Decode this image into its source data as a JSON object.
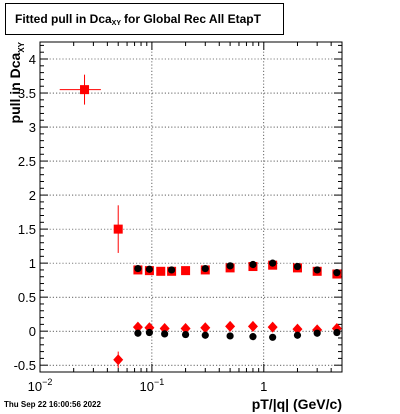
{
  "title": {
    "main": "Fitted pull in Dca",
    "sub": "XY",
    "rest": "for Global Rec All EtapT"
  },
  "timestamp": "Thu Sep 22 16:00:56 2022",
  "chart_data": {
    "type": "scatter",
    "title": "Fitted pull in Dca_XY for Global Rec All EtapT",
    "xlabel": "pT/|q| (GeV/c)",
    "ylabel": "pull in Dca_XY",
    "xscale": "log",
    "xlim": [
      0.01,
      5.0
    ],
    "ylim": [
      -0.6,
      4.25
    ],
    "grid": true,
    "x_tick_labels": [
      "10^-2",
      "10^-1",
      "1"
    ],
    "y_tick_labels": [
      "-0.5",
      "0",
      "0.5",
      "1",
      "1.5",
      "2",
      "2.5",
      "3",
      "3.5",
      "4"
    ],
    "series": [
      {
        "marker": "square",
        "color": "#ff0000",
        "points": [
          {
            "x": 0.025,
            "y": 3.55,
            "xerr": [
              0.01,
              0.01
            ],
            "yerr": 0.22
          },
          {
            "x": 0.05,
            "y": 1.5,
            "yerr": 0.35
          },
          {
            "x": 0.075,
            "y": 0.9
          },
          {
            "x": 0.095,
            "y": 0.89
          },
          {
            "x": 0.12,
            "y": 0.88
          },
          {
            "x": 0.15,
            "y": 0.88
          },
          {
            "x": 0.2,
            "y": 0.89
          },
          {
            "x": 0.3,
            "y": 0.9
          },
          {
            "x": 0.5,
            "y": 0.93
          },
          {
            "x": 0.8,
            "y": 0.95
          },
          {
            "x": 1.2,
            "y": 0.97
          },
          {
            "x": 2.0,
            "y": 0.93
          },
          {
            "x": 3.0,
            "y": 0.88
          },
          {
            "x": 4.5,
            "y": 0.84
          }
        ]
      },
      {
        "marker": "circle",
        "color": "#000000",
        "points": [
          {
            "x": 0.075,
            "y": 0.92
          },
          {
            "x": 0.095,
            "y": 0.91
          },
          {
            "x": 0.15,
            "y": 0.9
          },
          {
            "x": 0.3,
            "y": 0.92
          },
          {
            "x": 0.5,
            "y": 0.96
          },
          {
            "x": 0.8,
            "y": 0.98
          },
          {
            "x": 1.2,
            "y": 1.0
          },
          {
            "x": 2.0,
            "y": 0.95
          },
          {
            "x": 3.0,
            "y": 0.9
          },
          {
            "x": 4.5,
            "y": 0.86
          }
        ]
      },
      {
        "marker": "diamond",
        "color": "#ff0000",
        "points": [
          {
            "x": 0.05,
            "y": -0.42,
            "yerr": 0.12
          },
          {
            "x": 0.075,
            "y": 0.06
          },
          {
            "x": 0.095,
            "y": 0.05
          },
          {
            "x": 0.13,
            "y": 0.04
          },
          {
            "x": 0.2,
            "y": 0.04
          },
          {
            "x": 0.3,
            "y": 0.05
          },
          {
            "x": 0.5,
            "y": 0.07
          },
          {
            "x": 0.8,
            "y": 0.07
          },
          {
            "x": 1.2,
            "y": 0.06
          },
          {
            "x": 2.0,
            "y": 0.03
          },
          {
            "x": 3.0,
            "y": 0.02
          },
          {
            "x": 4.5,
            "y": 0.04
          }
        ]
      },
      {
        "marker": "circle",
        "color": "#000000",
        "points": [
          {
            "x": 0.075,
            "y": -0.03
          },
          {
            "x": 0.095,
            "y": -0.02
          },
          {
            "x": 0.13,
            "y": -0.04
          },
          {
            "x": 0.2,
            "y": -0.05
          },
          {
            "x": 0.3,
            "y": -0.06
          },
          {
            "x": 0.5,
            "y": -0.07
          },
          {
            "x": 0.8,
            "y": -0.08
          },
          {
            "x": 1.2,
            "y": -0.09
          },
          {
            "x": 2.0,
            "y": -0.06
          },
          {
            "x": 3.0,
            "y": -0.03
          },
          {
            "x": 4.5,
            "y": -0.02
          }
        ]
      }
    ]
  }
}
